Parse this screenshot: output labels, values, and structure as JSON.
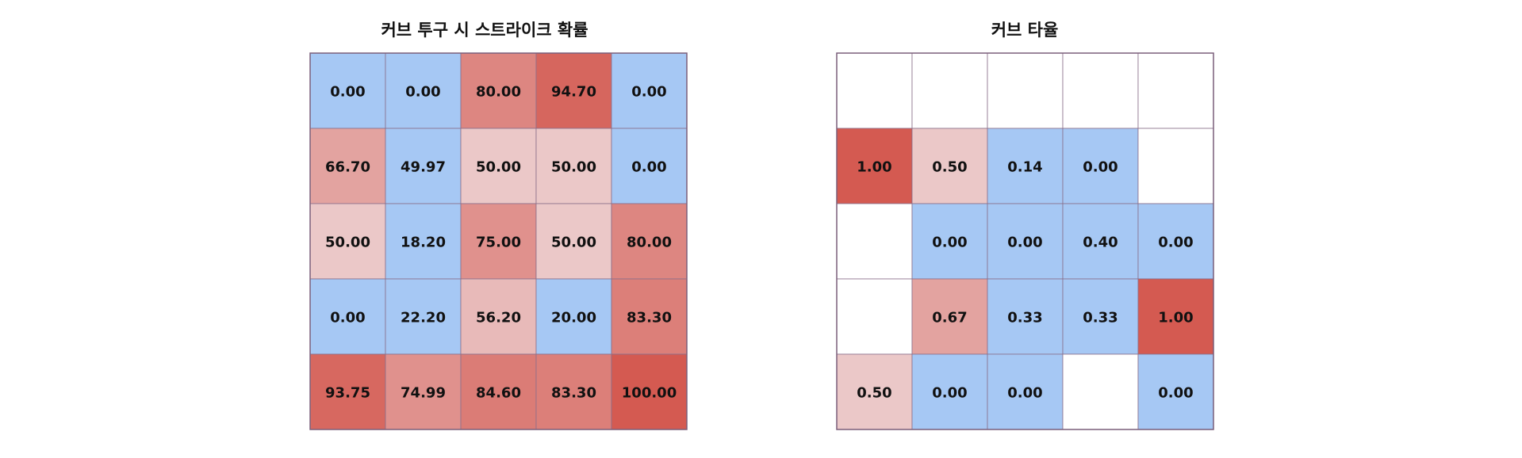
{
  "chart_data": [
    {
      "type": "heatmap",
      "title": "커브 투구 시 스트라이크 확률",
      "rows": 5,
      "cols": 5,
      "values": [
        [
          0.0,
          0.0,
          80.0,
          94.7,
          0.0
        ],
        [
          66.7,
          49.97,
          50.0,
          50.0,
          0.0
        ],
        [
          50.0,
          18.2,
          75.0,
          50.0,
          80.0
        ],
        [
          0.0,
          22.2,
          56.2,
          20.0,
          83.3
        ],
        [
          93.75,
          74.99,
          84.6,
          83.3,
          100.0
        ]
      ],
      "labels": [
        [
          "0.00",
          "0.00",
          "80.00",
          "94.70",
          "0.00"
        ],
        [
          "66.70",
          "49.97",
          "50.00",
          "50.00",
          "0.00"
        ],
        [
          "50.00",
          "18.20",
          "75.00",
          "50.00",
          "80.00"
        ],
        [
          "0.00",
          "22.20",
          "56.20",
          "20.00",
          "83.30"
        ],
        [
          "93.75",
          "74.99",
          "84.60",
          "83.30",
          "100.00"
        ]
      ],
      "color_range": [
        0,
        100
      ],
      "colors": {
        "low": "#a6c8f4",
        "mid": "#ebc8c8",
        "high": "#d45a51",
        "empty": "#ffffff",
        "border": "#8a6f8a"
      }
    },
    {
      "type": "heatmap",
      "title": "커브 타율",
      "rows": 5,
      "cols": 5,
      "values": [
        [
          null,
          null,
          null,
          null,
          null
        ],
        [
          1.0,
          0.5,
          0.14,
          0.0,
          null
        ],
        [
          null,
          0.0,
          0.0,
          0.4,
          0.0
        ],
        [
          null,
          0.67,
          0.33,
          0.33,
          1.0
        ],
        [
          0.5,
          0.0,
          0.0,
          null,
          0.0
        ]
      ],
      "labels": [
        [
          "",
          "",
          "",
          "",
          ""
        ],
        [
          "1.00",
          "0.50",
          "0.14",
          "0.00",
          ""
        ],
        [
          "",
          "0.00",
          "0.00",
          "0.40",
          "0.00"
        ],
        [
          "",
          "0.67",
          "0.33",
          "0.33",
          "1.00"
        ],
        [
          "0.50",
          "0.00",
          "0.00",
          "",
          "0.00"
        ]
      ],
      "color_range": [
        0,
        1
      ],
      "colors": {
        "low": "#a6c8f4",
        "mid": "#ebc8c8",
        "high": "#d45a51",
        "empty": "#ffffff",
        "border": "#8a6f8a"
      }
    }
  ]
}
